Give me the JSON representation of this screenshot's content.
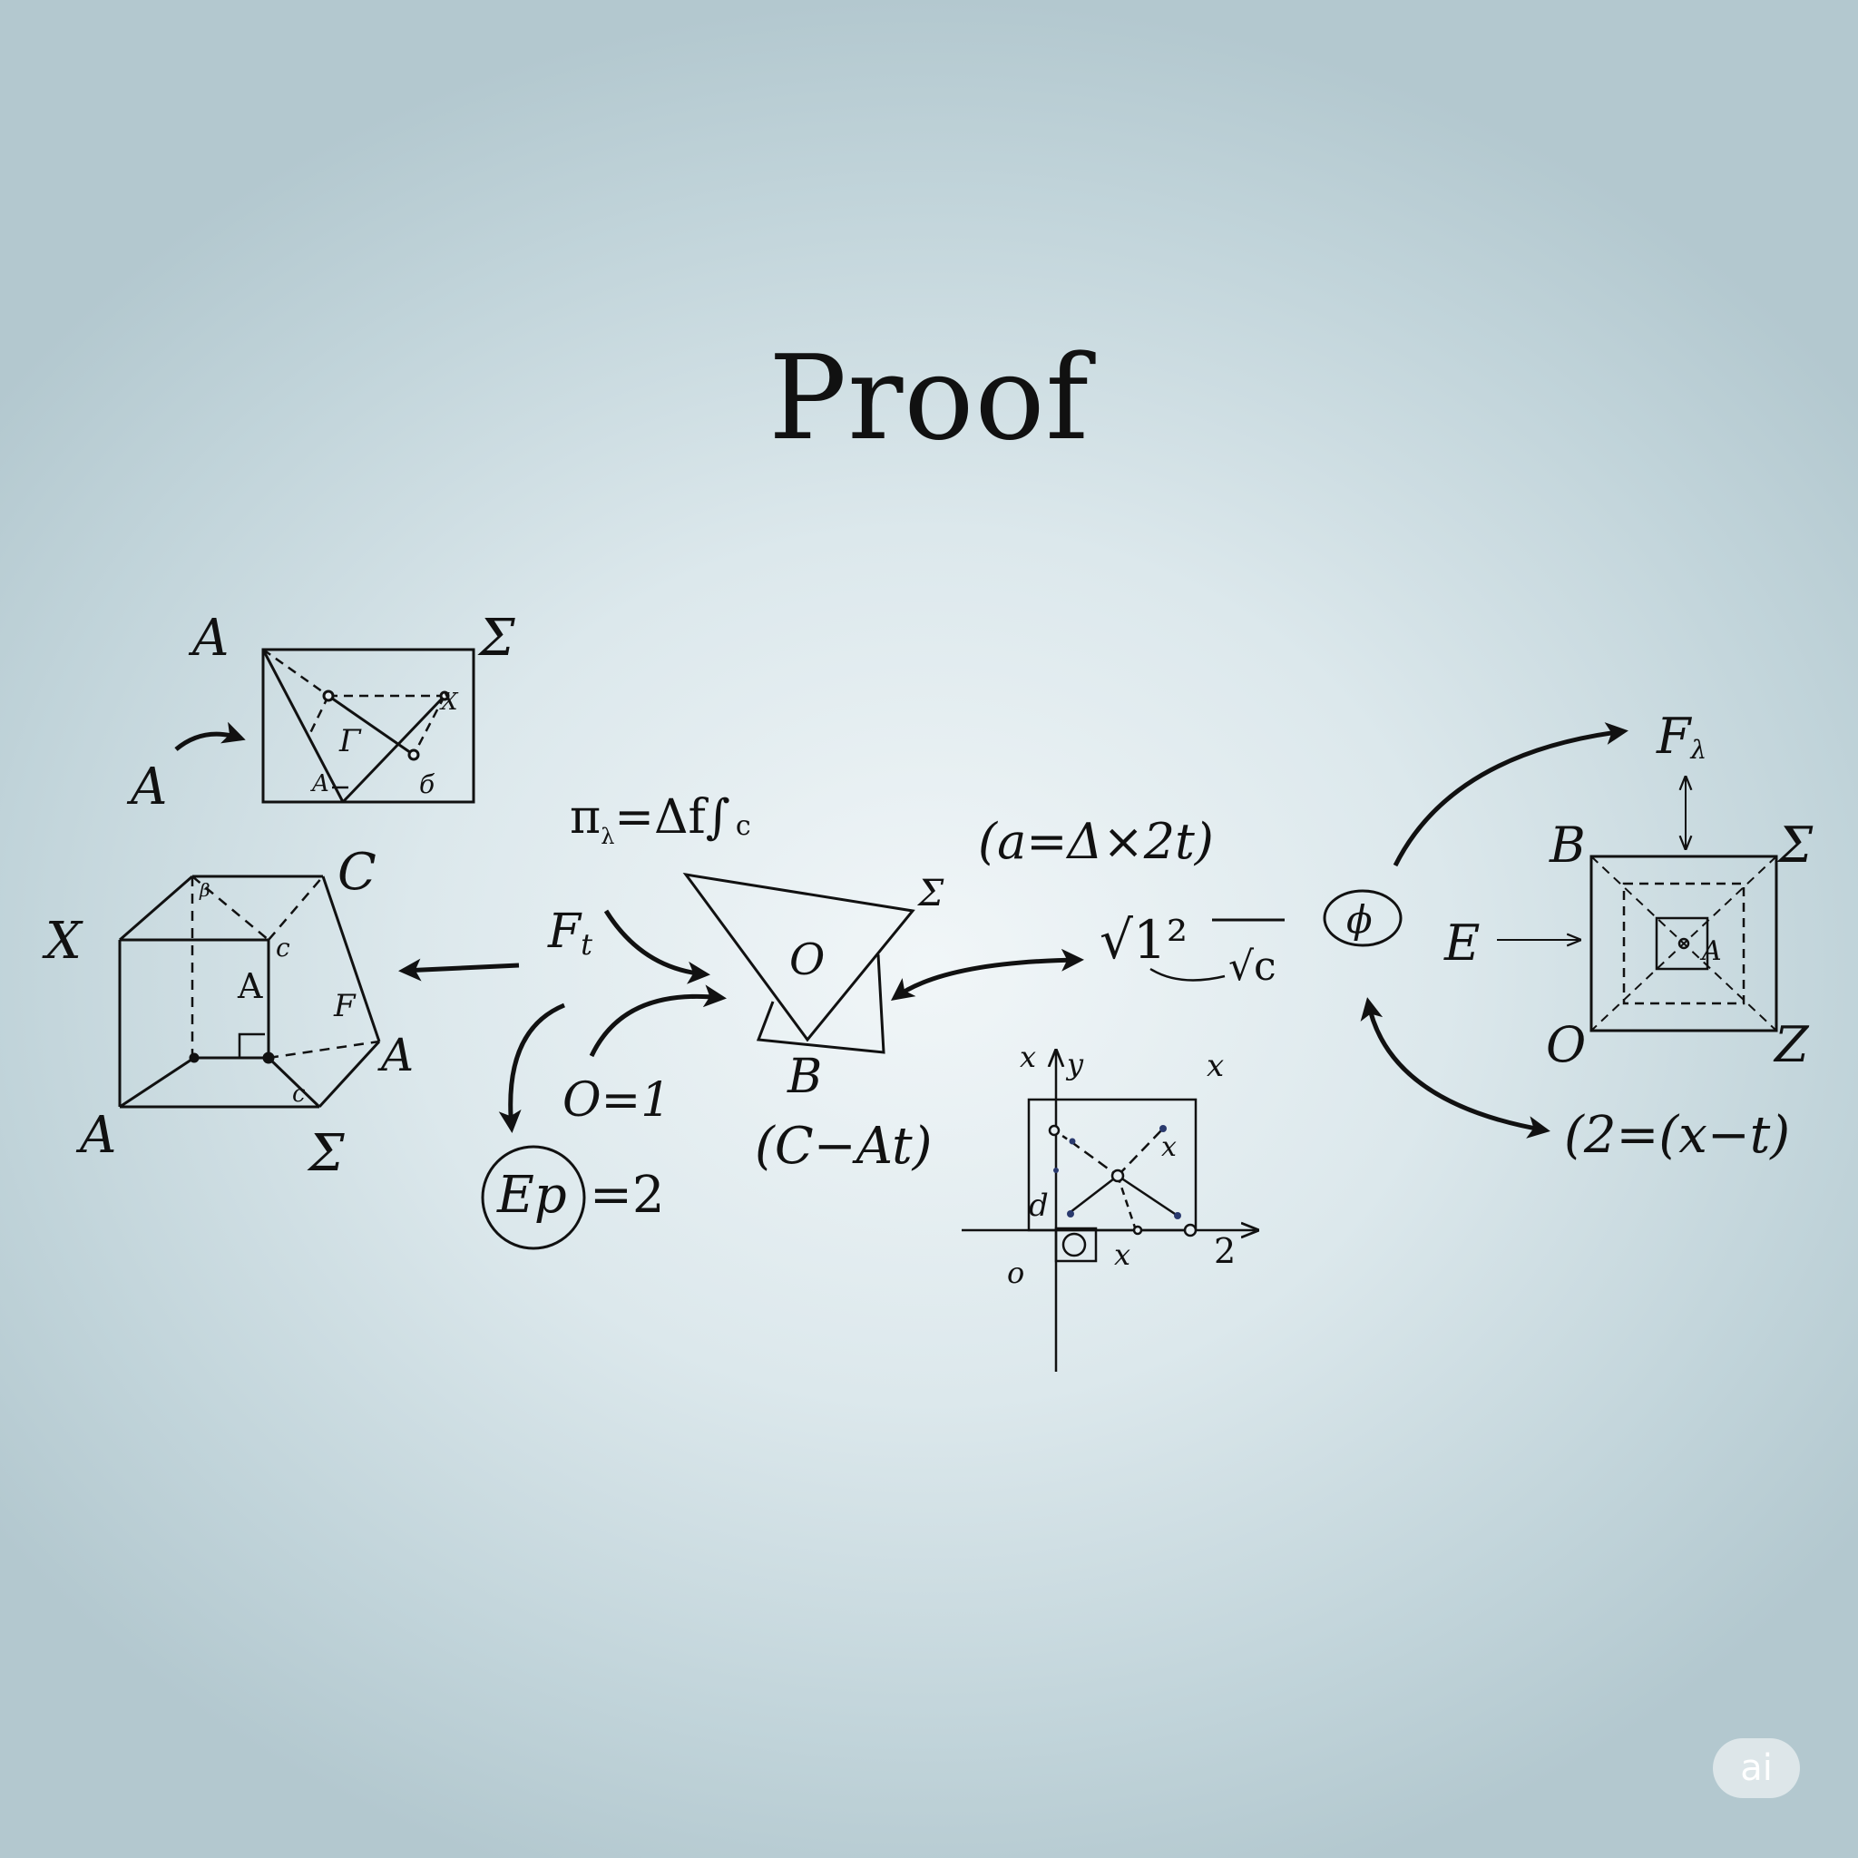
{
  "title": "Proof",
  "badge": "ai",
  "labels": {
    "tl_A_top": "A",
    "tl_sigma": "Σ",
    "tl_A_left": "A",
    "tl_gamma": "Γ",
    "tl_x": "X",
    "tl_A_inner": "A",
    "tl_sigma_small": "б",
    "cube_X": "X",
    "cube_C": "C",
    "cube_A_bottom": "A",
    "cube_sigma": "Σ",
    "cube_A_right": "A",
    "cube_F": "F",
    "cube_A_inner": "A",
    "cube_c_upper": "c",
    "cube_c_lower": "c",
    "cube_beta": "β",
    "eq_pi": "π",
    "eq_pi_sub": "λ",
    "eq_pi_rest": "=Δf∫",
    "eq_pi_c": "c",
    "ft_F": "F",
    "ft_t": "t",
    "o_eq_1": "O=1",
    "ep": "Ep",
    "ep_eq": "=2",
    "tri_O": "O",
    "tri_sigma": "Σ",
    "tri_B": "B",
    "c_minus_at": "(C−At)",
    "a_eq": "(a=Δ×2t)",
    "sqrt_left": "√1²",
    "sqrt_right": "√c",
    "phi": "ϕ",
    "g_x_top": "x",
    "g_y": "y",
    "g_x_right": "x",
    "g_x_inner": "x",
    "g_d": "d",
    "g_o": "o",
    "g_x_axis": "x",
    "g_2": "2",
    "r_F": "F",
    "r_F_sub": "λ",
    "r_B": "B",
    "r_sigma": "Σ",
    "r_E": "E",
    "r_A_inner": "A",
    "r_O": "O",
    "r_Z": "Z",
    "r_eq": "(2=(x−t)"
  }
}
